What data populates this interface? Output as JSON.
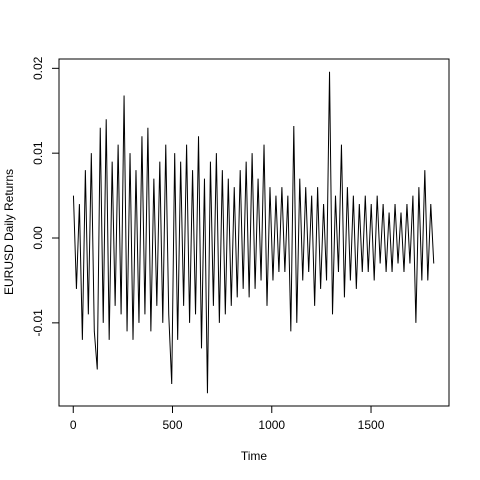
{
  "chart_data": {
    "type": "line",
    "xlabel": "Time",
    "ylabel": "EURUSD Daily Returns",
    "xlim": [
      -71.8,
      1892.8
    ],
    "ylim": [
      -0.0198,
      0.0211
    ],
    "xticks": [
      0,
      500,
      1000,
      1500
    ],
    "yticks": [
      -0.01,
      {
        "value": 0,
        "label": "0.00"
      },
      0.01,
      0.02
    ],
    "color": "#000000",
    "x": [
      1,
      16,
      31,
      46,
      61,
      76,
      91,
      106,
      121,
      136,
      151,
      166,
      181,
      196,
      211,
      226,
      241,
      256,
      271,
      286,
      301,
      316,
      331,
      346,
      361,
      376,
      391,
      406,
      421,
      436,
      451,
      466,
      481,
      496,
      511,
      526,
      541,
      556,
      571,
      586,
      601,
      616,
      631,
      646,
      661,
      676,
      691,
      706,
      721,
      736,
      751,
      766,
      781,
      796,
      811,
      826,
      841,
      856,
      871,
      886,
      901,
      916,
      931,
      946,
      961,
      976,
      991,
      1006,
      1021,
      1036,
      1051,
      1066,
      1081,
      1096,
      1111,
      1126,
      1141,
      1156,
      1171,
      1186,
      1201,
      1216,
      1231,
      1246,
      1261,
      1276,
      1291,
      1306,
      1321,
      1336,
      1351,
      1366,
      1381,
      1396,
      1411,
      1426,
      1441,
      1456,
      1471,
      1486,
      1501,
      1516,
      1531,
      1546,
      1561,
      1576,
      1591,
      1606,
      1621,
      1636,
      1651,
      1666,
      1681,
      1696,
      1711,
      1726,
      1741,
      1756,
      1771,
      1786,
      1801,
      1816
    ],
    "values": [
      0.005,
      -0.006,
      0.004,
      -0.012,
      0.008,
      -0.009,
      0.01,
      -0.011,
      -0.0155,
      0.013,
      -0.01,
      0.014,
      -0.012,
      0.009,
      -0.008,
      0.011,
      -0.009,
      0.0168,
      -0.011,
      0.01,
      -0.012,
      0.008,
      -0.01,
      0.012,
      -0.009,
      0.013,
      -0.011,
      0.007,
      -0.008,
      0.009,
      -0.01,
      0.011,
      -0.009,
      -0.0172,
      0.01,
      -0.012,
      0.009,
      -0.008,
      0.011,
      -0.01,
      0.008,
      -0.009,
      0.012,
      -0.013,
      0.007,
      -0.0183,
      0.009,
      -0.008,
      0.01,
      -0.01,
      0.008,
      -0.009,
      0.007,
      -0.008,
      0.006,
      -0.007,
      0.008,
      -0.006,
      0.009,
      -0.007,
      0.01,
      -0.006,
      0.007,
      -0.005,
      0.011,
      -0.008,
      0.006,
      -0.005,
      0.005,
      -0.004,
      0.006,
      -0.004,
      0.005,
      -0.011,
      0.0132,
      -0.01,
      0.007,
      -0.005,
      0.006,
      -0.004,
      0.005,
      -0.008,
      0.006,
      -0.006,
      0.004,
      -0.005,
      0.0196,
      -0.009,
      0.005,
      -0.004,
      0.011,
      -0.007,
      0.006,
      -0.005,
      0.005,
      -0.006,
      0.004,
      -0.004,
      0.005,
      -0.004,
      0.004,
      -0.005,
      0.005,
      -0.003,
      0.004,
      -0.004,
      0.003,
      -0.004,
      0.004,
      -0.003,
      0.003,
      -0.004,
      0.004,
      -0.003,
      0.005,
      -0.01,
      0.006,
      -0.005,
      0.008,
      -0.005,
      0.004,
      -0.003
    ]
  }
}
